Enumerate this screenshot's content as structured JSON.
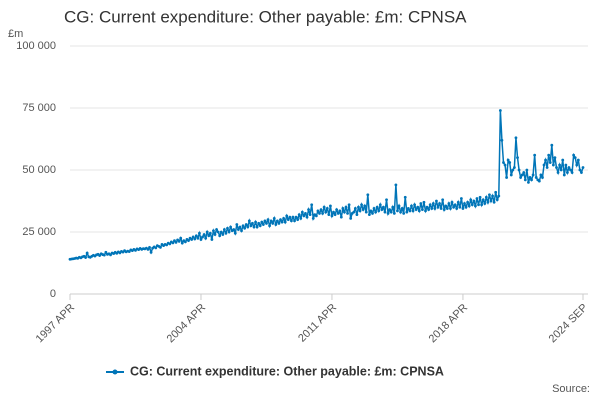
{
  "chart_data": {
    "type": "line",
    "title": "CG: Current expenditure: Other payable: £m: CPNSA",
    "y_label": "£m",
    "source": "Source:",
    "categories": [
      "1997 APR",
      null,
      null,
      null,
      null,
      null,
      null,
      null,
      null,
      null,
      null,
      null,
      null,
      null,
      null,
      null,
      null,
      null,
      null,
      null,
      null,
      null,
      null,
      null,
      null,
      null,
      null,
      null,
      null,
      null,
      null,
      null,
      null,
      null,
      null,
      null,
      null,
      null,
      null,
      null,
      null,
      null,
      null,
      null,
      null,
      null,
      null,
      null,
      null,
      null,
      null,
      null,
      null,
      null,
      null,
      null,
      null,
      null,
      null,
      null,
      null,
      null,
      null,
      null,
      null,
      null,
      null,
      null,
      null,
      null,
      null,
      null,
      null,
      null,
      null,
      null,
      null,
      null,
      null,
      null,
      null,
      null,
      null,
      null,
      "2004 APR",
      null,
      null,
      null,
      null,
      null,
      null,
      null,
      null,
      null,
      null,
      null,
      null,
      null,
      null,
      null,
      null,
      null,
      null,
      null,
      null,
      null,
      null,
      null,
      null,
      null,
      null,
      null,
      null,
      null,
      null,
      null,
      null,
      null,
      null,
      null,
      null,
      null,
      null,
      null,
      null,
      null,
      null,
      null,
      null,
      null,
      null,
      null,
      null,
      null,
      null,
      null,
      null,
      null,
      null,
      null,
      null,
      null,
      null,
      null,
      null,
      null,
      null,
      null,
      null,
      null,
      null,
      null,
      null,
      null,
      null,
      null,
      null,
      null,
      null,
      null,
      null,
      null,
      null,
      null,
      null,
      null,
      null,
      null,
      "2011 APR",
      null,
      null,
      null,
      null,
      null,
      null,
      null,
      null,
      null,
      null,
      null,
      null,
      null,
      null,
      null,
      null,
      null,
      null,
      null,
      null,
      null,
      null,
      null,
      null,
      null,
      null,
      null,
      null,
      null,
      null,
      null,
      null,
      null,
      null,
      null,
      null,
      null,
      null,
      null,
      null,
      null,
      null,
      null,
      null,
      null,
      null,
      null,
      null,
      null,
      null,
      null,
      null,
      null,
      null,
      null,
      null,
      null,
      null,
      null,
      null,
      null,
      null,
      null,
      null,
      null,
      null,
      null,
      null,
      null,
      null,
      null,
      null,
      null,
      null,
      null,
      null,
      null,
      null,
      null,
      null,
      null,
      null,
      null,
      "2018 APR",
      null,
      null,
      null,
      null,
      null,
      null,
      null,
      null,
      null,
      null,
      null,
      null,
      null,
      null,
      null,
      null,
      null,
      null,
      null,
      null,
      null,
      null,
      null,
      null,
      null,
      null,
      null,
      null,
      null,
      null,
      null,
      null,
      null,
      null,
      null,
      null,
      null,
      null,
      null,
      null,
      null,
      null,
      null,
      null,
      null,
      null,
      null,
      null,
      null,
      null,
      null,
      null,
      null,
      null,
      null,
      null,
      null,
      null,
      null,
      null,
      null,
      null,
      null,
      null,
      null,
      null,
      null,
      null,
      null,
      null,
      null,
      null,
      null,
      null,
      null,
      null,
      "2024 SEP"
    ],
    "series": [
      {
        "name": "CG: Current expenditure: Other payable: £m: CPNSA",
        "color": "#0075b8",
        "values": [
          14000,
          14100,
          14200,
          14300,
          14500,
          14400,
          14800,
          14600,
          15000,
          15200,
          14700,
          16500,
          15000,
          14800,
          15200,
          15600,
          15300,
          15800,
          16000,
          15500,
          16200,
          15900,
          15700,
          16800,
          16000,
          16200,
          15800,
          16500,
          16300,
          16800,
          16400,
          17000,
          16600,
          17200,
          16900,
          17500,
          17000,
          17300,
          17100,
          17800,
          17500,
          18000,
          17600,
          18200,
          17900,
          18400,
          18000,
          18300,
          18200,
          18500,
          18000,
          18800,
          16800,
          18500,
          19000,
          18600,
          19500,
          19200,
          18800,
          20000,
          19500,
          20000,
          19800,
          20500,
          20200,
          21000,
          20600,
          21500,
          20800,
          21800,
          21200,
          22500,
          20500,
          21500,
          21000,
          22000,
          21500,
          22500,
          22000,
          23000,
          22200,
          23500,
          22500,
          24500,
          22000,
          23000,
          24000,
          22500,
          25000,
          23500,
          24500,
          22000,
          25500,
          24000,
          26000,
          25000,
          23500,
          25000,
          24000,
          26000,
          24500,
          26500,
          25000,
          27000,
          25500,
          26000,
          24500,
          28000,
          26000,
          27000,
          25500,
          27500,
          26500,
          28000,
          27000,
          29500,
          27500,
          28500,
          27000,
          29000,
          27000,
          28500,
          27500,
          29000,
          28000,
          29500,
          28500,
          30000,
          27500,
          29500,
          28500,
          30500,
          28000,
          29500,
          28500,
          30000,
          29000,
          30500,
          29000,
          31500,
          30000,
          31000,
          29500,
          31000,
          29500,
          31000,
          30000,
          32000,
          30500,
          33000,
          31500,
          32500,
          31000,
          34000,
          32000,
          36000,
          30500,
          32000,
          31500,
          33500,
          32500,
          34000,
          32500,
          35000,
          33000,
          34500,
          32000,
          35500,
          31500,
          33000,
          32000,
          34000,
          32500,
          33500,
          31000,
          34500,
          33000,
          35000,
          32500,
          36000,
          30500,
          32500,
          33000,
          34500,
          32000,
          35000,
          33500,
          36000,
          34000,
          35500,
          33000,
          40000,
          32000,
          33500,
          32500,
          34500,
          33000,
          35000,
          33500,
          36000,
          34000,
          35000,
          33000,
          38000,
          32500,
          34000,
          33000,
          35000,
          32500,
          44000,
          33500,
          35500,
          33000,
          34500,
          32500,
          39000,
          33000,
          34500,
          33500,
          35500,
          33500,
          36000,
          34000,
          35000,
          33500,
          36500,
          34000,
          37000,
          33500,
          35000,
          34000,
          36000,
          34500,
          36500,
          34500,
          37500,
          35000,
          36500,
          34500,
          38000,
          34000,
          35500,
          34500,
          36500,
          34500,
          37000,
          35000,
          36000,
          34500,
          37000,
          35000,
          38500,
          34500,
          36500,
          35000,
          37000,
          35500,
          38000,
          36000,
          37500,
          35500,
          38500,
          36000,
          39000,
          36000,
          38000,
          36500,
          39000,
          37000,
          40000,
          37500,
          39500,
          37000,
          41000,
          38000,
          39500,
          74000,
          62000,
          53000,
          52000,
          47000,
          54000,
          53000,
          48000,
          50000,
          51000,
          63000,
          55000,
          50000,
          47000,
          48000,
          49000,
          46000,
          50000,
          45000,
          47000,
          46000,
          48000,
          56000,
          47000,
          46000,
          45500,
          48000,
          47000,
          52000,
          54000,
          51000,
          56000,
          53000,
          60000,
          52000,
          55000,
          51000,
          49000,
          52000,
          50000,
          54000,
          48000,
          52000,
          49000,
          51000,
          50000,
          49000,
          56000,
          55000,
          52000,
          54000,
          50000,
          49000,
          51000
        ]
      }
    ],
    "ylim": [
      0,
      100000
    ],
    "yticks": [
      0,
      {
        "value": 25000,
        "label": "25 000"
      },
      {
        "value": 50000,
        "label": "50 000"
      },
      {
        "value": 75000,
        "label": "75 000"
      },
      {
        "value": 100000,
        "label": "100 000"
      }
    ],
    "grid": true
  }
}
